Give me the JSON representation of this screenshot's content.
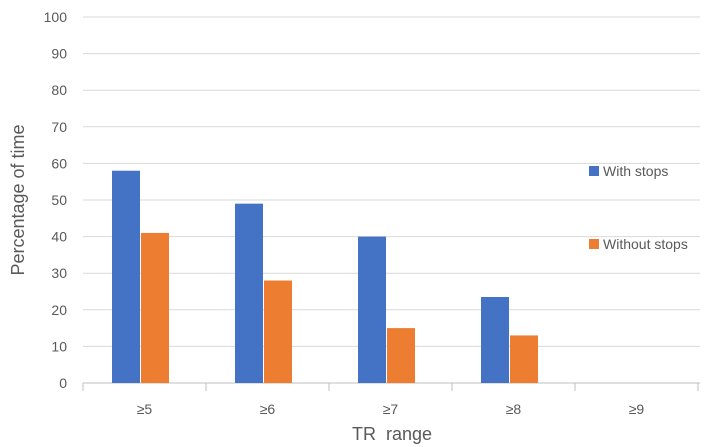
{
  "chart_data": {
    "type": "bar",
    "title": "",
    "xlabel": "TR  range",
    "ylabel": "Percentage of time",
    "categories": [
      "≥5",
      "≥6",
      "≥7",
      "≥8",
      "≥9"
    ],
    "series": [
      {
        "name": "With stops",
        "color": "#4472C4",
        "values": [
          58,
          49,
          40,
          23.5,
          0
        ]
      },
      {
        "name": "Without stops",
        "color": "#ED7D31",
        "values": [
          41,
          28,
          15,
          13,
          0
        ]
      }
    ],
    "ylim": [
      0,
      100
    ],
    "yticks": [
      0,
      10,
      20,
      30,
      40,
      50,
      60,
      70,
      80,
      90,
      100
    ],
    "grid": true,
    "legend": "right"
  }
}
